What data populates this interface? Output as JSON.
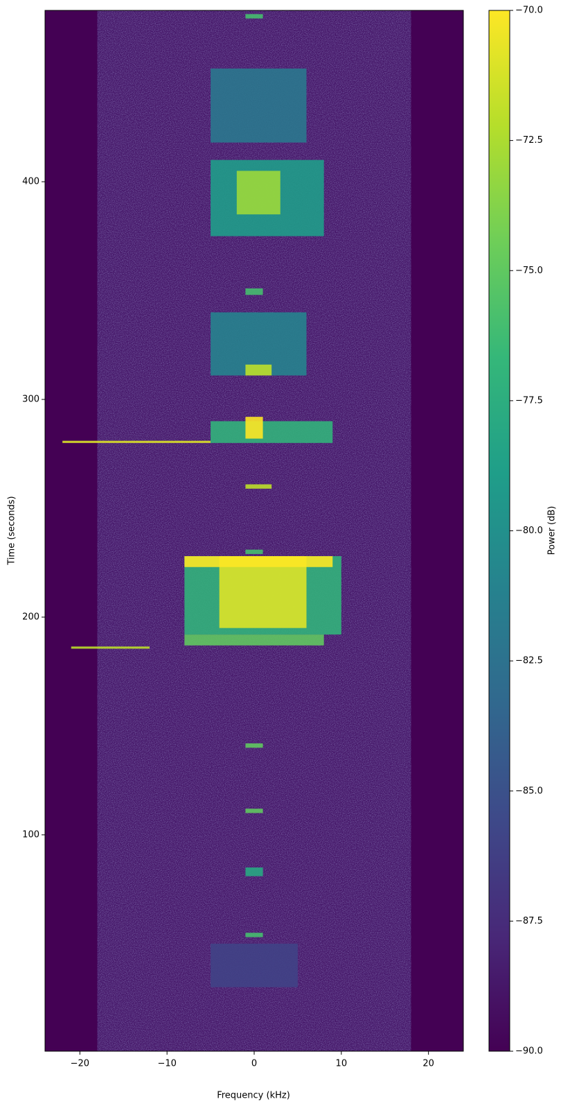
{
  "chart_data": {
    "type": "spectrogram",
    "xlabel": "Frequency (kHz)",
    "ylabel": "Time (seconds)",
    "xlim": [
      -24,
      24
    ],
    "xticks": [
      {
        "value": -20,
        "label": "−20"
      },
      {
        "value": -10,
        "label": "−10"
      },
      0,
      10,
      20
    ],
    "ylim": [
      0.6,
      478.7
    ],
    "yticks": [
      100,
      200,
      300,
      400
    ],
    "colorbar": {
      "label": "Power (dB)",
      "lim": [
        -90,
        -70
      ],
      "ticks": [
        {
          "value": -90,
          "label": "−90.0"
        },
        {
          "value": -87.5,
          "label": "−87.5"
        },
        {
          "value": -85,
          "label": "−85.0"
        },
        {
          "value": -82.5,
          "label": "−82.5"
        },
        {
          "value": -80,
          "label": "−80.0"
        },
        {
          "value": -77.5,
          "label": "−77.5"
        },
        {
          "value": -75,
          "label": "−75.0"
        },
        {
          "value": -72.5,
          "label": "−72.5"
        },
        {
          "value": -70,
          "label": "−70.0"
        }
      ]
    },
    "colormap": [
      "#440154",
      "#482878",
      "#3e4989",
      "#31688e",
      "#26828e",
      "#1f9e89",
      "#35b779",
      "#6ece58",
      "#b5de2b",
      "#fde725"
    ],
    "regions": [
      {
        "t0": 0.6,
        "t1": 478.7,
        "f0": -18,
        "f1": 18,
        "level": -88.6
      },
      {
        "t0": 30,
        "t1": 50,
        "f0": -5,
        "f1": 5,
        "level": -86
      },
      {
        "t0": 53,
        "t1": 55,
        "f0": -1,
        "f1": 1,
        "level": -76
      },
      {
        "t0": 81,
        "t1": 85,
        "f0": -1,
        "f1": 1,
        "level": -78
      },
      {
        "t0": 110,
        "t1": 112,
        "f0": -1,
        "f1": 1,
        "level": -75
      },
      {
        "t0": 140,
        "t1": 142,
        "f0": -1,
        "f1": 1,
        "level": -75
      },
      {
        "t0": 185.5,
        "t1": 186.5,
        "f0": -21,
        "f1": -12,
        "level": -72
      },
      {
        "t0": 187,
        "t1": 192,
        "f0": -8,
        "f1": 8,
        "level": -75
      },
      {
        "t0": 192,
        "t1": 228,
        "f0": -8,
        "f1": 10,
        "level": -77
      },
      {
        "t0": 195,
        "t1": 228,
        "f0": -4,
        "f1": 6,
        "level": -71
      },
      {
        "t0": 223,
        "t1": 228,
        "f0": -8,
        "f1": 9,
        "level": -70
      },
      {
        "t0": 229,
        "t1": 231,
        "f0": -1,
        "f1": 1,
        "level": -76
      },
      {
        "t0": 259,
        "t1": 261,
        "f0": -1,
        "f1": 2,
        "level": -72
      },
      {
        "t0": 280,
        "t1": 281,
        "f0": -22,
        "f1": -5,
        "level": -71
      },
      {
        "t0": 280,
        "t1": 290,
        "f0": -5,
        "f1": 9,
        "level": -77
      },
      {
        "t0": 282,
        "t1": 292,
        "f0": -1,
        "f1": 1,
        "level": -70
      },
      {
        "t0": 311,
        "t1": 340,
        "f0": -5,
        "f1": 6,
        "level": -81
      },
      {
        "t0": 311,
        "t1": 316,
        "f0": -1,
        "f1": 2,
        "level": -72
      },
      {
        "t0": 348,
        "t1": 351,
        "f0": -1,
        "f1": 1,
        "level": -76
      },
      {
        "t0": 375,
        "t1": 410,
        "f0": -5,
        "f1": 8,
        "level": -79
      },
      {
        "t0": 385,
        "t1": 405,
        "f0": -2,
        "f1": 3,
        "level": -73
      },
      {
        "t0": 418,
        "t1": 452,
        "f0": -5,
        "f1": 6,
        "level": -82
      },
      {
        "t0": 475,
        "t1": 477,
        "f0": -1,
        "f1": 1,
        "level": -76
      }
    ]
  }
}
